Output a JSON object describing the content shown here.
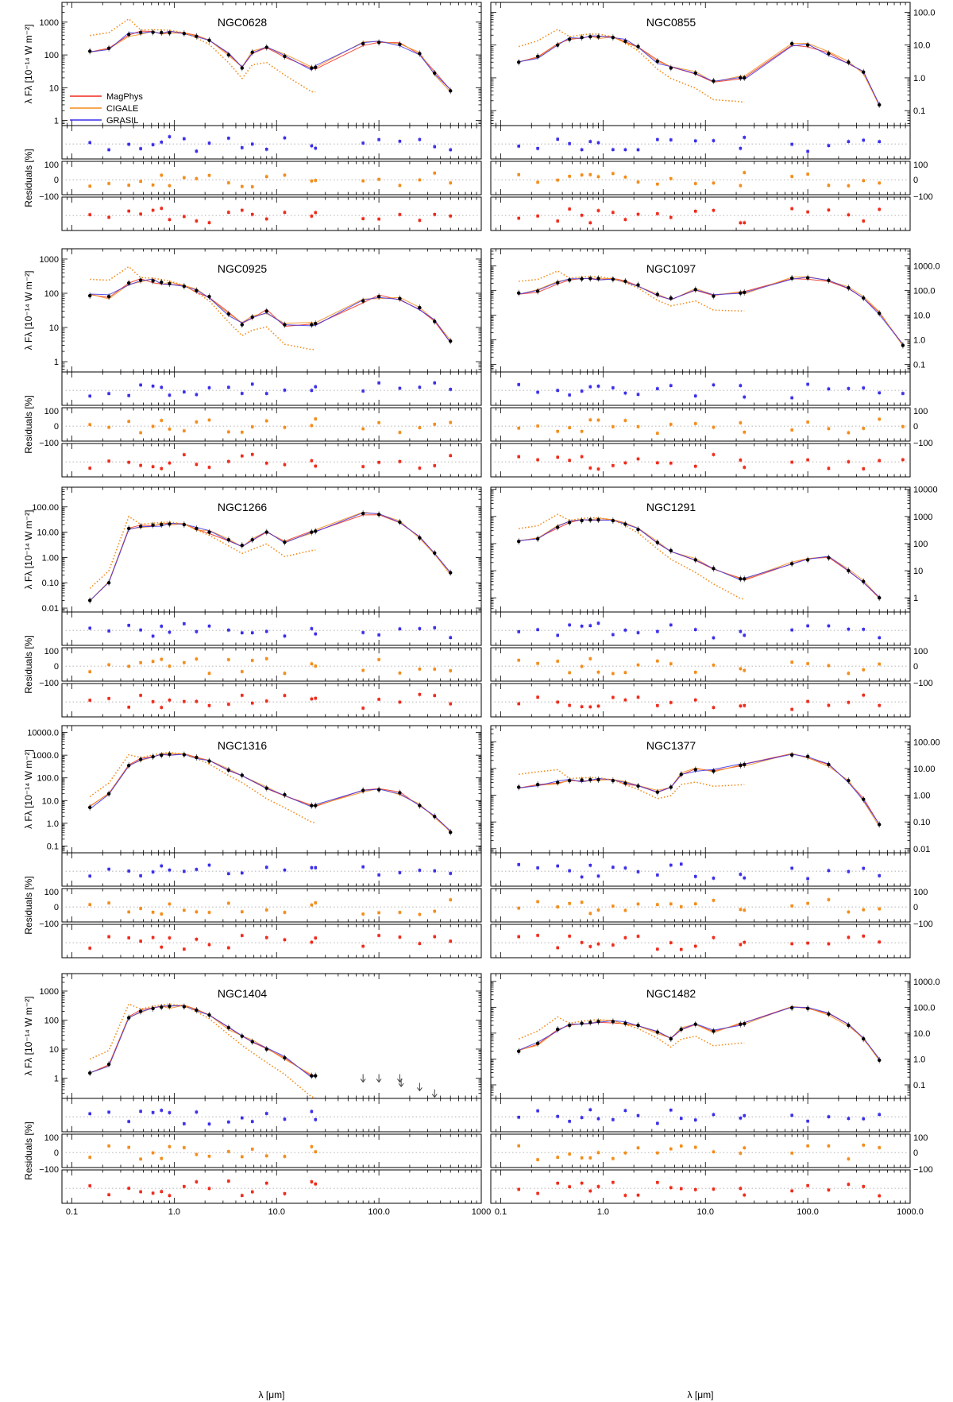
{
  "figure": {
    "xlabel": "λ [μm]",
    "ylabel_top": "λ F",
    "ylabel_sub": "λ",
    "ylabel_units": "[10⁻¹⁴ W m⁻²]",
    "residual_label": "Residuals [%]",
    "residual_ticks": [
      "100",
      "0",
      "−100"
    ]
  },
  "legend": [
    {
      "label": "MagPhys",
      "color": "#ee2a1a"
    },
    {
      "label": "CIGALE",
      "color": "#f28c1a"
    },
    {
      "label": "GRASIL",
      "color": "#3a2ee8"
    }
  ],
  "chart_data": [
    {
      "type": "line",
      "title": "NGC0628",
      "xscale": "log",
      "xlim": [
        0.08,
        1000
      ],
      "xticks": [
        "0.1",
        "1.0",
        "10.0",
        "100.0",
        "1000"
      ],
      "ylim": [
        0.7,
        4000
      ],
      "yticks": [
        "1",
        "10",
        "100",
        "1000"
      ],
      "yaxis_side": "left",
      "obs": {
        "x": [
          0.15,
          0.23,
          0.36,
          0.47,
          0.62,
          0.75,
          0.9,
          1.25,
          1.65,
          2.2,
          3.4,
          4.6,
          5.8,
          8.0,
          12,
          22,
          24,
          70,
          100,
          160,
          250,
          350,
          500
        ],
        "y": [
          130,
          160,
          420,
          480,
          490,
          480,
          470,
          450,
          370,
          280,
          100,
          40,
          120,
          170,
          90,
          40,
          42,
          220,
          240,
          210,
          110,
          28,
          8
        ]
      }
    },
    {
      "type": "line",
      "title": "NGC0855",
      "xscale": "log",
      "xlim": [
        0.08,
        1000
      ],
      "xticks": [
        "0.1",
        "1.0",
        "10.0",
        "100.0",
        "1000.0"
      ],
      "ylim": [
        0.035,
        200
      ],
      "yticks": [
        "0.1",
        "1.0",
        "10.0",
        "100.0"
      ],
      "yaxis_side": "right",
      "obs": {
        "x": [
          0.15,
          0.23,
          0.36,
          0.47,
          0.62,
          0.75,
          0.9,
          1.25,
          1.65,
          2.2,
          3.4,
          4.6,
          8.0,
          12,
          22,
          24,
          70,
          100,
          160,
          250,
          350,
          500
        ],
        "y": [
          3,
          4.5,
          10,
          15,
          17,
          18,
          18,
          17,
          13,
          9,
          3.2,
          2,
          1.4,
          0.8,
          1.0,
          1.0,
          11,
          10,
          5.5,
          3,
          1.5,
          0.15
        ]
      }
    },
    {
      "type": "line",
      "title": "NGC0925",
      "xscale": "log",
      "xlim": [
        0.08,
        1000
      ],
      "xticks": [
        "0.1",
        "1.0",
        "10.0",
        "100.0",
        "1000"
      ],
      "ylim": [
        0.5,
        2000
      ],
      "yticks": [
        "1",
        "10",
        "100",
        "1000"
      ],
      "yaxis_side": "left",
      "obs": {
        "x": [
          0.15,
          0.23,
          0.36,
          0.47,
          0.62,
          0.75,
          0.9,
          1.25,
          1.65,
          2.2,
          3.4,
          4.6,
          5.8,
          8.0,
          12,
          22,
          24,
          70,
          100,
          160,
          250,
          350,
          500
        ],
        "y": [
          85,
          80,
          200,
          240,
          230,
          210,
          190,
          160,
          120,
          80,
          25,
          12,
          20,
          30,
          12,
          12,
          13,
          60,
          80,
          70,
          38,
          15,
          4
        ]
      }
    },
    {
      "type": "line",
      "title": "NGC1097",
      "xscale": "log",
      "xlim": [
        0.08,
        1000
      ],
      "xticks": [
        "0.1",
        "1.0",
        "10.0",
        "100.0",
        "1000.0"
      ],
      "ylim": [
        0.05,
        5000
      ],
      "yticks": [
        "0.1",
        "1.0",
        "10.0",
        "100.0",
        "1000.0"
      ],
      "yaxis_side": "right",
      "obs": {
        "x": [
          0.15,
          0.23,
          0.36,
          0.47,
          0.62,
          0.75,
          0.9,
          1.25,
          1.65,
          2.2,
          3.4,
          4.6,
          8.0,
          12,
          22,
          24,
          70,
          100,
          160,
          250,
          350,
          500,
          850
        ],
        "y": [
          80,
          95,
          210,
          270,
          300,
          310,
          310,
          290,
          240,
          170,
          70,
          50,
          110,
          60,
          80,
          85,
          320,
          330,
          260,
          130,
          50,
          12,
          0.6
        ]
      }
    },
    {
      "type": "line",
      "title": "NGC1266",
      "xscale": "log",
      "xlim": [
        0.08,
        1000
      ],
      "xticks": [
        "0.1",
        "1.0",
        "10.0",
        "100.0",
        "1000"
      ],
      "ylim": [
        0.007,
        600
      ],
      "yticks": [
        "0.01",
        "0.10",
        "1.00",
        "10.00",
        "100.00"
      ],
      "yaxis_side": "left",
      "obs": {
        "x": [
          0.15,
          0.23,
          0.36,
          0.47,
          0.62,
          0.75,
          0.9,
          1.25,
          1.65,
          2.2,
          3.4,
          4.6,
          5.8,
          8.0,
          12,
          22,
          24,
          70,
          100,
          160,
          250,
          350,
          500
        ],
        "y": [
          0.02,
          0.1,
          14,
          17,
          19,
          20,
          21,
          20,
          14,
          10,
          5,
          3,
          5,
          10,
          4,
          10,
          11,
          55,
          50,
          25,
          6,
          1.5,
          0.25
        ]
      }
    },
    {
      "type": "line",
      "title": "NGC1291",
      "xscale": "log",
      "xlim": [
        0.08,
        1000
      ],
      "xticks": [
        "0.1",
        "1.0",
        "10.0",
        "100.0",
        "1000.0"
      ],
      "ylim": [
        0.3,
        12000
      ],
      "yticks": [
        "1",
        "10",
        "100",
        "1000",
        "10000"
      ],
      "yaxis_side": "right",
      "obs": {
        "x": [
          0.15,
          0.23,
          0.36,
          0.47,
          0.62,
          0.75,
          0.9,
          1.25,
          1.65,
          2.2,
          3.4,
          4.6,
          8.0,
          12,
          22,
          24,
          70,
          100,
          160,
          250,
          350,
          500
        ],
        "y": [
          120,
          150,
          400,
          600,
          700,
          750,
          750,
          700,
          520,
          330,
          110,
          55,
          25,
          12,
          5,
          5,
          18,
          25,
          30,
          10,
          4,
          1
        ]
      }
    },
    {
      "type": "line",
      "title": "NGC1316",
      "xscale": "log",
      "xlim": [
        0.08,
        1000
      ],
      "xticks": [
        "0.1",
        "1.0",
        "10.0",
        "100.0",
        "1000"
      ],
      "ylim": [
        0.05,
        20000
      ],
      "yticks": [
        "0.1",
        "1.0",
        "10.0",
        "100.0",
        "1000.0",
        "10000.0"
      ],
      "yaxis_side": "left",
      "obs": {
        "x": [
          0.15,
          0.23,
          0.36,
          0.47,
          0.62,
          0.75,
          0.9,
          1.25,
          1.65,
          2.2,
          3.4,
          4.6,
          8.0,
          12,
          22,
          24,
          70,
          100,
          160,
          250,
          350,
          500
        ],
        "y": [
          5,
          20,
          350,
          650,
          850,
          1000,
          1100,
          1050,
          800,
          550,
          220,
          130,
          35,
          18,
          6,
          6,
          28,
          30,
          22,
          6,
          2,
          0.4
        ]
      }
    },
    {
      "type": "line",
      "title": "NGC1377",
      "xscale": "log",
      "xlim": [
        0.08,
        1000
      ],
      "xticks": [
        "0.1",
        "1.0",
        "10.0",
        "100.0",
        "1000.0"
      ],
      "ylim": [
        0.007,
        400
      ],
      "yticks": [
        "0.01",
        "0.10",
        "1.00",
        "10.00",
        "100.00"
      ],
      "yaxis_side": "right",
      "obs": {
        "x": [
          0.15,
          0.23,
          0.36,
          0.47,
          0.62,
          0.75,
          0.9,
          1.25,
          1.65,
          2.2,
          3.4,
          4.6,
          5.8,
          8.0,
          12,
          22,
          24,
          70,
          100,
          160,
          250,
          350,
          500
        ],
        "y": [
          2,
          2.5,
          3,
          3.5,
          3.7,
          3.8,
          3.8,
          3.5,
          2.8,
          2.2,
          1.3,
          2,
          6,
          9,
          8,
          13,
          14,
          32,
          28,
          14,
          3.5,
          0.7,
          0.08
        ]
      }
    },
    {
      "type": "line",
      "title": "NGC1404",
      "xscale": "log",
      "xlim": [
        0.08,
        1000
      ],
      "xticks": [
        "0.1",
        "1.0",
        "10.0",
        "100.0",
        "1000"
      ],
      "ylim": [
        0.2,
        4000
      ],
      "yticks": [
        "1",
        "10",
        "100",
        "1000"
      ],
      "yaxis_side": "left",
      "upper_limits": {
        "x": [
          70,
          100,
          160,
          165,
          250,
          350
        ],
        "y": [
          1.0,
          1.0,
          1.0,
          0.7,
          0.5,
          0.3
        ]
      },
      "obs": {
        "x": [
          0.15,
          0.23,
          0.36,
          0.47,
          0.62,
          0.75,
          0.9,
          1.25,
          1.65,
          2.2,
          3.4,
          4.6,
          5.8,
          8.0,
          12,
          22,
          24
        ],
        "y": [
          1.5,
          3,
          120,
          200,
          250,
          280,
          300,
          290,
          220,
          150,
          55,
          28,
          18,
          10,
          5,
          1.2,
          1.2
        ]
      }
    },
    {
      "type": "line",
      "title": "NGC1482",
      "xscale": "log",
      "xlim": [
        0.08,
        1000
      ],
      "xticks": [
        "0.1",
        "1.0",
        "10.0",
        "100.0",
        "1000.0"
      ],
      "ylim": [
        0.03,
        2000
      ],
      "yticks": [
        "0.1",
        "1.0",
        "10.0",
        "100.0",
        "1000.0"
      ],
      "yaxis_side": "right",
      "obs": {
        "x": [
          0.15,
          0.23,
          0.36,
          0.47,
          0.62,
          0.75,
          0.9,
          1.25,
          1.65,
          2.2,
          3.4,
          4.6,
          5.8,
          8.0,
          12,
          22,
          24,
          70,
          100,
          160,
          250,
          350,
          500
        ],
        "y": [
          2,
          4,
          14,
          20,
          24,
          26,
          28,
          28,
          24,
          20,
          11,
          6,
          14,
          22,
          12,
          22,
          23,
          95,
          90,
          55,
          20,
          6,
          0.9
        ]
      }
    }
  ]
}
